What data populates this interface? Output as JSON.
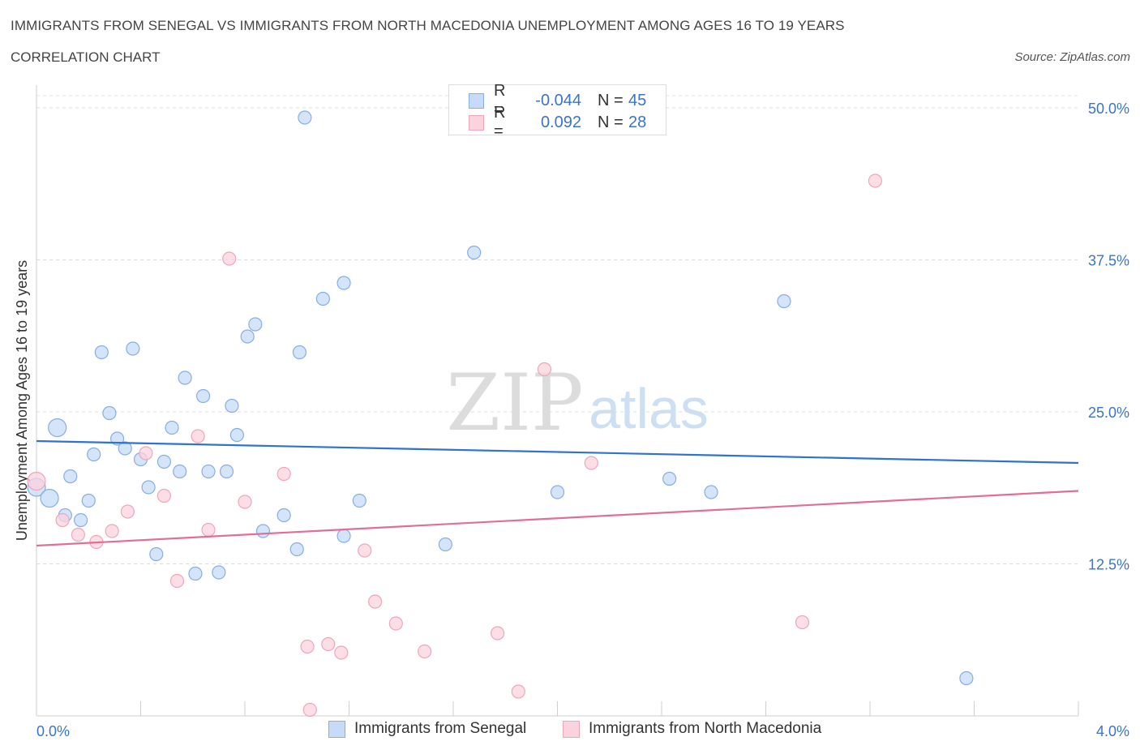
{
  "title": "IMMIGRANTS FROM SENEGAL VS IMMIGRANTS FROM NORTH MACEDONIA UNEMPLOYMENT AMONG AGES 16 TO 19 YEARS",
  "subtitle": "CORRELATION CHART",
  "source": "Source: ZipAtlas.com",
  "watermark": {
    "zip": "ZIP",
    "atlas": "atlas"
  },
  "legend_top": {
    "rows": [
      {
        "r_label": "R =",
        "r_value": "-0.044",
        "n_label": "N =",
        "n_value": "45"
      },
      {
        "r_label": "R =",
        "r_value": "0.092",
        "n_label": "N =",
        "n_value": "28"
      }
    ]
  },
  "legend_bottom": [
    "Immigrants from Senegal",
    "Immigrants from North Macedonia"
  ],
  "colors": {
    "blue_fill": "#c6dbf7",
    "blue_stroke": "#86aee6",
    "blue_line": "#2f72d0",
    "pink_fill": "#fbd3de",
    "pink_stroke": "#f0a5bb",
    "pink_line": "#e26d95",
    "axis_label": "#3a74c9"
  },
  "chart_data": {
    "type": "scatter",
    "title": "IMMIGRANTS FROM SENEGAL VS IMMIGRANTS FROM NORTH MACEDONIA UNEMPLOYMENT AMONG AGES 16 TO 19 YEARS",
    "xlabel": "",
    "ylabel": "Unemployment Among Ages 16 to 19 years",
    "xlim": [
      0,
      4
    ],
    "ylim": [
      0,
      50
    ],
    "x_tick_labels": [
      "0.0%",
      "4.0%"
    ],
    "y_ticks": [
      12.5,
      25,
      37.5,
      50
    ],
    "y_tick_labels": [
      "12.5%",
      "25.0%",
      "37.5%",
      "50.0%"
    ],
    "grid": "horizontal-dashed",
    "series": [
      {
        "name": "Immigrants from Senegal",
        "color": "blue",
        "R": -0.044,
        "N": 45,
        "trend": {
          "x": [
            0,
            4
          ],
          "y": [
            22.6,
            20.8
          ]
        },
        "points": [
          [
            1.03,
            49.2
          ],
          [
            1.68,
            38.1
          ],
          [
            1.18,
            35.6
          ],
          [
            1.1,
            34.3
          ],
          [
            2.87,
            34.1
          ],
          [
            0.84,
            32.2
          ],
          [
            0.81,
            31.2
          ],
          [
            0.37,
            30.2
          ],
          [
            1.01,
            29.9
          ],
          [
            0.25,
            29.9
          ],
          [
            0.57,
            27.8
          ],
          [
            0.64,
            26.3
          ],
          [
            0.75,
            25.5
          ],
          [
            0.28,
            24.9
          ],
          [
            0.08,
            23.7
          ],
          [
            0.52,
            23.7
          ],
          [
            0.77,
            23.1
          ],
          [
            0.31,
            22.8
          ],
          [
            0.34,
            22.0
          ],
          [
            0.22,
            21.5
          ],
          [
            0.4,
            21.1
          ],
          [
            0.49,
            20.9
          ],
          [
            0.55,
            20.1
          ],
          [
            0.66,
            20.1
          ],
          [
            0.73,
            20.1
          ],
          [
            0.13,
            19.7
          ],
          [
            2.43,
            19.5
          ],
          [
            0.43,
            18.8
          ],
          [
            0.0,
            18.8
          ],
          [
            2.0,
            18.4
          ],
          [
            2.59,
            18.4
          ],
          [
            0.05,
            17.9
          ],
          [
            0.2,
            17.7
          ],
          [
            1.24,
            17.7
          ],
          [
            0.11,
            16.5
          ],
          [
            0.17,
            16.1
          ],
          [
            0.95,
            16.5
          ],
          [
            0.87,
            15.2
          ],
          [
            1.18,
            14.8
          ],
          [
            1.57,
            14.1
          ],
          [
            1.0,
            13.7
          ],
          [
            0.46,
            13.3
          ],
          [
            0.61,
            11.7
          ],
          [
            0.7,
            11.8
          ],
          [
            3.57,
            3.1
          ]
        ],
        "large_points": [
          [
            0.08,
            23.7
          ],
          [
            0.05,
            17.9
          ],
          [
            0.0,
            18.8
          ]
        ]
      },
      {
        "name": "Immigrants from North Macedonia",
        "color": "pink",
        "R": 0.092,
        "N": 28,
        "trend": {
          "x": [
            0,
            4
          ],
          "y": [
            14.0,
            18.5
          ]
        },
        "points": [
          [
            3.22,
            44.0
          ],
          [
            0.74,
            37.6
          ],
          [
            1.95,
            28.5
          ],
          [
            0.62,
            23.0
          ],
          [
            0.42,
            21.6
          ],
          [
            2.13,
            20.8
          ],
          [
            0.95,
            19.9
          ],
          [
            0.0,
            19.3
          ],
          [
            0.49,
            18.1
          ],
          [
            0.8,
            17.6
          ],
          [
            0.35,
            16.8
          ],
          [
            0.1,
            16.1
          ],
          [
            0.29,
            15.2
          ],
          [
            0.66,
            15.3
          ],
          [
            0.16,
            14.9
          ],
          [
            0.23,
            14.3
          ],
          [
            1.26,
            13.6
          ],
          [
            0.54,
            11.1
          ],
          [
            1.3,
            9.4
          ],
          [
            1.38,
            7.6
          ],
          [
            2.94,
            7.7
          ],
          [
            1.77,
            6.8
          ],
          [
            1.12,
            5.9
          ],
          [
            1.04,
            5.7
          ],
          [
            1.17,
            5.2
          ],
          [
            1.49,
            5.3
          ],
          [
            1.85,
            2.0
          ],
          [
            1.05,
            0.5
          ]
        ],
        "large_points": [
          [
            0.0,
            19.3
          ]
        ]
      }
    ]
  }
}
